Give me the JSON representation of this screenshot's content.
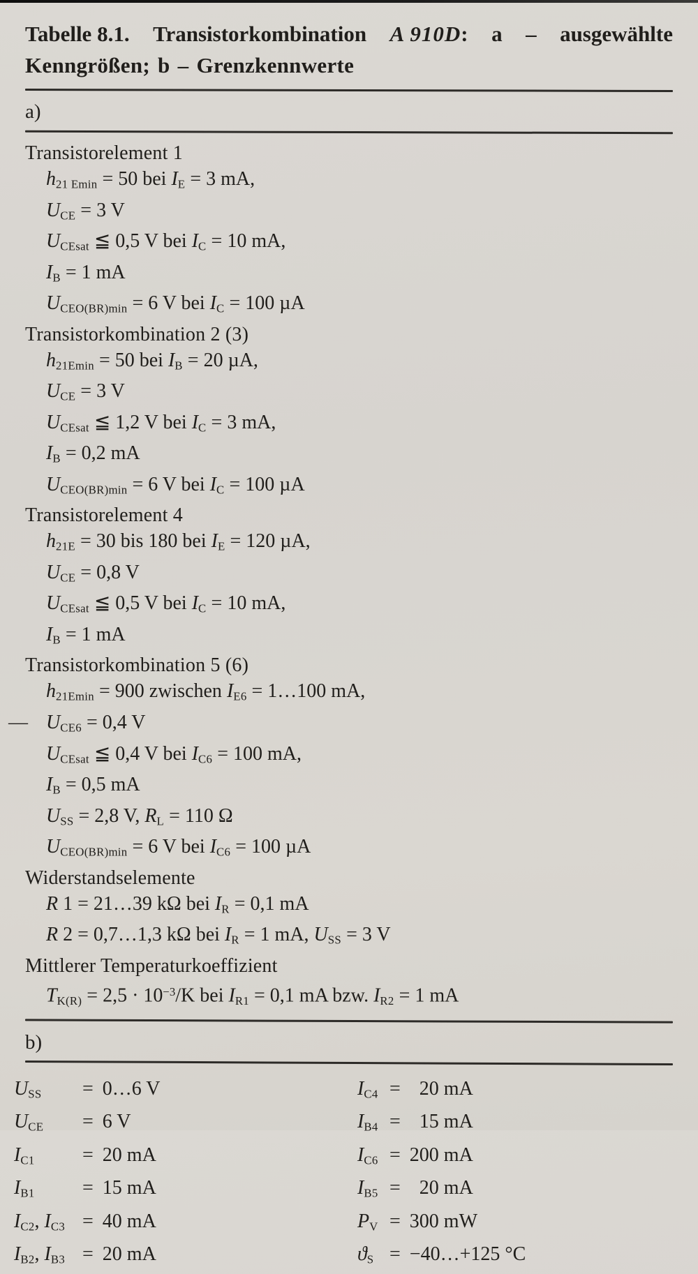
{
  "title": {
    "line1": [
      "Tabelle 8.1.",
      "Transistorkombination",
      "A 910D",
      ":",
      "a",
      "–",
      "ausgewählte"
    ],
    "line2": "Kenngrößen; b – Grenzkennwerte"
  },
  "section_a": {
    "label": "a)",
    "groups": [
      {
        "heading": "Transistorelement 1",
        "lines": [
          [
            {
              "s": "i",
              "t": "h"
            },
            {
              "s": "sub",
              "t": "21 Emin"
            },
            {
              "s": "r",
              "t": " = 50 bei "
            },
            {
              "s": "i",
              "t": "I"
            },
            {
              "s": "sub",
              "t": "E"
            },
            {
              "s": "r",
              "t": " = 3 mA,"
            }
          ],
          [
            {
              "s": "i",
              "t": "U"
            },
            {
              "s": "sub",
              "t": "CE"
            },
            {
              "s": "r",
              "t": " = 3 V"
            }
          ],
          [
            {
              "s": "i",
              "t": "U"
            },
            {
              "s": "sub",
              "t": "CEsat"
            },
            {
              "s": "r",
              "t": " ≦ 0,5 V bei "
            },
            {
              "s": "i",
              "t": "I"
            },
            {
              "s": "sub",
              "t": "C"
            },
            {
              "s": "r",
              "t": " = 10 mA,"
            }
          ],
          [
            {
              "s": "i",
              "t": "I"
            },
            {
              "s": "sub",
              "t": "B"
            },
            {
              "s": "r",
              "t": " = 1 mA"
            }
          ],
          [
            {
              "s": "i",
              "t": "U"
            },
            {
              "s": "sub",
              "t": "CEO(BR)min"
            },
            {
              "s": "r",
              "t": " = 6 V bei "
            },
            {
              "s": "i",
              "t": "I"
            },
            {
              "s": "sub",
              "t": "C"
            },
            {
              "s": "r",
              "t": " = 100 µA"
            }
          ]
        ]
      },
      {
        "heading": "Transistorkombination 2 (3)",
        "lines": [
          [
            {
              "s": "i",
              "t": "h"
            },
            {
              "s": "sub",
              "t": "21Emin"
            },
            {
              "s": "r",
              "t": " = 50 bei "
            },
            {
              "s": "i",
              "t": "I"
            },
            {
              "s": "sub",
              "t": "B"
            },
            {
              "s": "r",
              "t": " = 20 µA,"
            }
          ],
          [
            {
              "s": "i",
              "t": "U"
            },
            {
              "s": "sub",
              "t": "CE"
            },
            {
              "s": "r",
              "t": " = 3 V"
            }
          ],
          [
            {
              "s": "i",
              "t": "U"
            },
            {
              "s": "sub",
              "t": "CEsat"
            },
            {
              "s": "r",
              "t": " ≦ 1,2 V bei "
            },
            {
              "s": "i",
              "t": "I"
            },
            {
              "s": "sub",
              "t": "C"
            },
            {
              "s": "r",
              "t": " = 3 mA,"
            }
          ],
          [
            {
              "s": "i",
              "t": "I"
            },
            {
              "s": "sub",
              "t": "B"
            },
            {
              "s": "r",
              "t": " = 0,2 mA"
            }
          ],
          [
            {
              "s": "i",
              "t": "U"
            },
            {
              "s": "sub",
              "t": "CEO(BR)min"
            },
            {
              "s": "r",
              "t": " = 6 V bei "
            },
            {
              "s": "i",
              "t": "I"
            },
            {
              "s": "sub",
              "t": "C"
            },
            {
              "s": "r",
              "t": " = 100 µA"
            }
          ]
        ]
      },
      {
        "heading": "Transistorelement 4",
        "lines": [
          [
            {
              "s": "i",
              "t": "h"
            },
            {
              "s": "sub",
              "t": "21E"
            },
            {
              "s": "r",
              "t": " = 30 bis 180 bei "
            },
            {
              "s": "i",
              "t": "I"
            },
            {
              "s": "sub",
              "t": "E"
            },
            {
              "s": "r",
              "t": " = 120 µA,"
            }
          ],
          [
            {
              "s": "i",
              "t": "U"
            },
            {
              "s": "sub",
              "t": "CE"
            },
            {
              "s": "r",
              "t": " = 0,8 V"
            }
          ],
          [
            {
              "s": "i",
              "t": "U"
            },
            {
              "s": "sub",
              "t": "CEsat"
            },
            {
              "s": "r",
              "t": " ≦ 0,5 V bei "
            },
            {
              "s": "i",
              "t": "I"
            },
            {
              "s": "sub",
              "t": "C"
            },
            {
              "s": "r",
              "t": " = 10 mA,"
            }
          ],
          [
            {
              "s": "i",
              "t": "I"
            },
            {
              "s": "sub",
              "t": "B"
            },
            {
              "s": "r",
              "t": " = 1 mA"
            }
          ]
        ]
      },
      {
        "heading": "Transistorkombination 5 (6)",
        "lines": [
          [
            {
              "s": "i",
              "t": "h"
            },
            {
              "s": "sub",
              "t": "21Emin"
            },
            {
              "s": "r",
              "t": " = 900 zwischen "
            },
            {
              "s": "i",
              "t": "I"
            },
            {
              "s": "sub",
              "t": "E6"
            },
            {
              "s": "r",
              "t": " = 1…100 mA,"
            }
          ],
          [
            {
              "s": "d",
              "t": "— "
            },
            {
              "s": "i",
              "t": "U"
            },
            {
              "s": "sub",
              "t": "CE6"
            },
            {
              "s": "r",
              "t": " = 0,4 V"
            }
          ],
          [
            {
              "s": "i",
              "t": "U"
            },
            {
              "s": "sub",
              "t": "CEsat"
            },
            {
              "s": "r",
              "t": " ≦ 0,4 V bei "
            },
            {
              "s": "i",
              "t": "I"
            },
            {
              "s": "sub",
              "t": "C6"
            },
            {
              "s": "r",
              "t": " = 100 mA,"
            }
          ],
          [
            {
              "s": "i",
              "t": "I"
            },
            {
              "s": "sub",
              "t": "B"
            },
            {
              "s": "r",
              "t": " = 0,5 mA"
            }
          ],
          [
            {
              "s": "i",
              "t": "U"
            },
            {
              "s": "sub",
              "t": "SS"
            },
            {
              "s": "r",
              "t": " = 2,8 V, "
            },
            {
              "s": "i",
              "t": "R"
            },
            {
              "s": "sub",
              "t": "L"
            },
            {
              "s": "r",
              "t": " = 110 Ω"
            }
          ],
          [
            {
              "s": "i",
              "t": "U"
            },
            {
              "s": "sub",
              "t": "CEO(BR)min"
            },
            {
              "s": "r",
              "t": " = 6 V bei "
            },
            {
              "s": "i",
              "t": "I"
            },
            {
              "s": "sub",
              "t": "C6"
            },
            {
              "s": "r",
              "t": " = 100 µA"
            }
          ]
        ]
      },
      {
        "heading": "Widerstandselemente",
        "lines": [
          [
            {
              "s": "i",
              "t": "R"
            },
            {
              "s": "r",
              "t": " 1 = 21…39 kΩ bei "
            },
            {
              "s": "i",
              "t": "I"
            },
            {
              "s": "sub",
              "t": "R"
            },
            {
              "s": "r",
              "t": " = 0,1 mA"
            }
          ],
          [
            {
              "s": "i",
              "t": "R"
            },
            {
              "s": "r",
              "t": " 2 = 0,7…1,3 kΩ bei "
            },
            {
              "s": "i",
              "t": "I"
            },
            {
              "s": "sub",
              "t": "R"
            },
            {
              "s": "r",
              "t": " = 1 mA, "
            },
            {
              "s": "i",
              "t": "U"
            },
            {
              "s": "sub",
              "t": "SS"
            },
            {
              "s": "r",
              "t": " = 3 V"
            }
          ]
        ]
      },
      {
        "heading": "Mittlerer Temperaturkoeffizient",
        "lines": [
          [
            {
              "s": "i",
              "t": "T"
            },
            {
              "s": "sub",
              "t": "K(R)"
            },
            {
              "s": "r",
              "t": " = 2,5 · 10"
            },
            {
              "s": "sup",
              "t": "−3"
            },
            {
              "s": "r",
              "t": "/K bei "
            },
            {
              "s": "i",
              "t": "I"
            },
            {
              "s": "sub",
              "t": "R1"
            },
            {
              "s": "r",
              "t": " = 0,1 mA bzw. "
            },
            {
              "s": "i",
              "t": "I"
            },
            {
              "s": "sub",
              "t": "R2"
            },
            {
              "s": "r",
              "t": " = 1 mA"
            }
          ]
        ]
      }
    ]
  },
  "section_b": {
    "label": "b)",
    "eq": "=",
    "left": [
      {
        "label": [
          {
            "s": "i",
            "t": "U"
          },
          {
            "s": "sub",
            "t": "SS"
          }
        ],
        "value": "0…6 V"
      },
      {
        "label": [
          {
            "s": "i",
            "t": "U"
          },
          {
            "s": "sub",
            "t": "CE"
          }
        ],
        "value": "6 V"
      },
      {
        "label": [
          {
            "s": "i",
            "t": "I"
          },
          {
            "s": "sub",
            "t": "C1"
          }
        ],
        "value": "20 mA"
      },
      {
        "label": [
          {
            "s": "i",
            "t": "I"
          },
          {
            "s": "sub",
            "t": "B1"
          }
        ],
        "value": "15 mA"
      },
      {
        "label": [
          {
            "s": "i",
            "t": "I"
          },
          {
            "s": "sub",
            "t": "C2"
          },
          {
            "s": "r",
            "t": ", "
          },
          {
            "s": "i",
            "t": "I"
          },
          {
            "s": "sub",
            "t": "C3"
          }
        ],
        "value": "40 mA"
      },
      {
        "label": [
          {
            "s": "i",
            "t": "I"
          },
          {
            "s": "sub",
            "t": "B2"
          },
          {
            "s": "r",
            "t": ", "
          },
          {
            "s": "i",
            "t": "I"
          },
          {
            "s": "sub",
            "t": "B3"
          }
        ],
        "value": "20 mA"
      }
    ],
    "right": [
      {
        "label": [
          {
            "s": "i",
            "t": "I"
          },
          {
            "s": "sub",
            "t": "C4"
          }
        ],
        "value": "  20 mA"
      },
      {
        "label": [
          {
            "s": "i",
            "t": "I"
          },
          {
            "s": "sub",
            "t": "B4"
          }
        ],
        "value": "  15 mA"
      },
      {
        "label": [
          {
            "s": "i",
            "t": "I"
          },
          {
            "s": "sub",
            "t": "C6"
          }
        ],
        "value": "200 mA"
      },
      {
        "label": [
          {
            "s": "i",
            "t": "I"
          },
          {
            "s": "sub",
            "t": "B5"
          }
        ],
        "value": "  20 mA"
      },
      {
        "label": [
          {
            "s": "i",
            "t": "P"
          },
          {
            "s": "sub",
            "t": "V"
          }
        ],
        "value": "300 mW"
      },
      {
        "label": [
          {
            "s": "i",
            "t": "ϑ"
          },
          {
            "s": "sub",
            "t": "S"
          }
        ],
        "value": "−40…+125 °C"
      }
    ]
  }
}
